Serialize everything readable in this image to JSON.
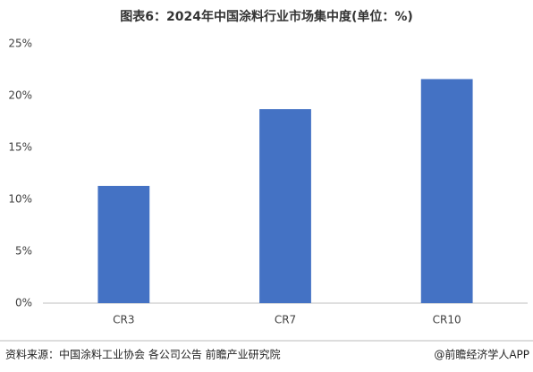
{
  "chart_data": {
    "type": "bar",
    "title": "图表6：2024年中国涂料行业市场集中度(单位：%)",
    "categories": [
      "CR3",
      "CR7",
      "CR10"
    ],
    "values": [
      11.3,
      18.7,
      21.6
    ],
    "color": "#4472c4",
    "ylim": [
      0,
      25
    ],
    "yticks": [
      {
        "value": 0,
        "label": "0%"
      },
      {
        "value": 5,
        "label": "5%"
      },
      {
        "value": 10,
        "label": "10%"
      },
      {
        "value": 15,
        "label": "15%"
      },
      {
        "value": 20,
        "label": "20%"
      },
      {
        "value": 25,
        "label": "25%"
      }
    ],
    "grid": false,
    "source": "资料来源：中国涂料工业协会 各公司公告 前瞻产业研究院",
    "credit": "@前瞻经济学人APP"
  }
}
